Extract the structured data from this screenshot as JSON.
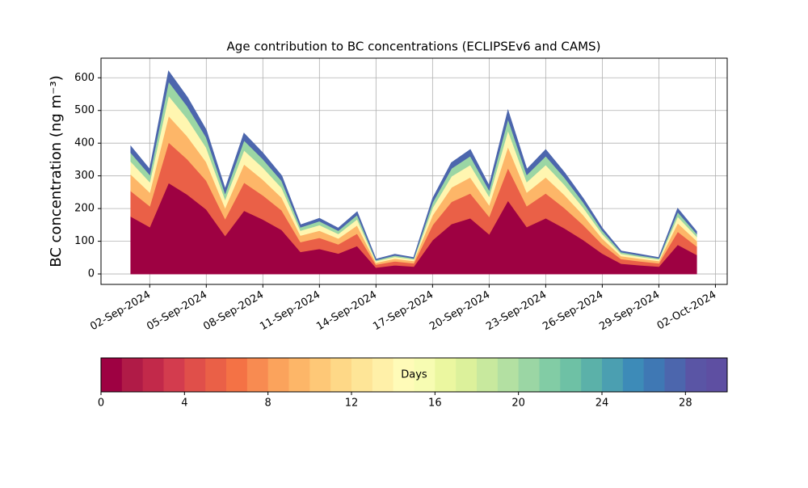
{
  "chart_data": {
    "type": "stacked_area",
    "title": "Age contribution to BC concentrations (ECLIPSEv6 and CAMS)",
    "y_label": "BC concentration (ng m⁻³)",
    "x": [
      "2024-09-01",
      "2024-09-02",
      "2024-09-03",
      "2024-09-04",
      "2024-09-05",
      "2024-09-06",
      "2024-09-07",
      "2024-09-08",
      "2024-09-09",
      "2024-09-10",
      "2024-09-11",
      "2024-09-12",
      "2024-09-13",
      "2024-09-14",
      "2024-09-15",
      "2024-09-16",
      "2024-09-17",
      "2024-09-18",
      "2024-09-19",
      "2024-09-20",
      "2024-09-21",
      "2024-09-22",
      "2024-09-23",
      "2024-09-24",
      "2024-09-25",
      "2024-09-26",
      "2024-09-27",
      "2024-09-28",
      "2024-09-29",
      "2024-09-30",
      "2024-10-01"
    ],
    "series": [
      {
        "color": "#9e0142",
        "values": [
          176,
          144,
          279,
          243,
          198,
          117,
          194,
          167,
          135,
          68,
          77,
          63,
          86,
          20,
          27,
          23,
          104,
          153,
          171,
          122,
          225,
          144,
          171,
          140,
          104,
          63,
          32,
          27,
          23,
          90,
          59
        ]
      },
      {
        "color": "#ea6047",
        "values": [
          78,
          64,
          124,
          108,
          88,
          52,
          86,
          74,
          60,
          30,
          34,
          28,
          38,
          9,
          12,
          10,
          46,
          68,
          76,
          54,
          100,
          64,
          76,
          62,
          46,
          28,
          14,
          12,
          10,
          40,
          26
        ]
      },
      {
        "color": "#fdb668",
        "values": [
          51,
          42,
          81,
          70,
          57,
          34,
          56,
          48,
          39,
          20,
          22,
          18,
          25,
          6,
          8,
          7,
          30,
          44,
          49,
          35,
          65,
          42,
          49,
          40,
          30,
          18,
          9,
          8,
          7,
          26,
          17
        ]
      },
      {
        "color": "#fff6b0",
        "values": [
          39,
          32,
          62,
          54,
          44,
          26,
          43,
          37,
          30,
          15,
          17,
          14,
          19,
          5,
          6,
          5,
          23,
          34,
          38,
          27,
          50,
          32,
          38,
          31,
          23,
          14,
          7,
          6,
          5,
          20,
          13
        ]
      },
      {
        "color": "#9bd6a4",
        "values": [
          27,
          22,
          43,
          38,
          31,
          18,
          30,
          26,
          21,
          10,
          12,
          10,
          13,
          3,
          4,
          3,
          16,
          24,
          27,
          19,
          35,
          22,
          27,
          22,
          16,
          10,
          5,
          4,
          3,
          14,
          9
        ]
      },
      {
        "color": "#4c66ad",
        "values": [
          19,
          16,
          31,
          27,
          22,
          13,
          21,
          18,
          15,
          7,
          8,
          7,
          9,
          2,
          3,
          2,
          11,
          17,
          19,
          13,
          25,
          16,
          19,
          15,
          11,
          7,
          3,
          3,
          2,
          10,
          6
        ]
      }
    ],
    "xlim": [
      "2024-08-30T10:00",
      "2024-10-02T15:00"
    ],
    "xticks": [
      {
        "value": "2024-09-02",
        "label": "02-Sep-2024"
      },
      {
        "value": "2024-09-05",
        "label": "05-Sep-2024"
      },
      {
        "value": "2024-09-08",
        "label": "08-Sep-2024"
      },
      {
        "value": "2024-09-11",
        "label": "11-Sep-2024"
      },
      {
        "value": "2024-09-14",
        "label": "14-Sep-2024"
      },
      {
        "value": "2024-09-17",
        "label": "17-Sep-2024"
      },
      {
        "value": "2024-09-20",
        "label": "20-Sep-2024"
      },
      {
        "value": "2024-09-23",
        "label": "23-Sep-2024"
      },
      {
        "value": "2024-09-26",
        "label": "26-Sep-2024"
      },
      {
        "value": "2024-09-29",
        "label": "29-Sep-2024"
      },
      {
        "value": "2024-10-02",
        "label": "02-Oct-2024"
      }
    ],
    "ylim": [
      -32,
      660
    ],
    "yticks": [
      0,
      100,
      200,
      300,
      400,
      500,
      600
    ],
    "grid": true,
    "colorbar": {
      "label": "Days",
      "lim": [
        0,
        30
      ],
      "ticks": [
        0,
        4,
        8,
        12,
        16,
        20,
        24,
        28
      ],
      "colors": [
        "#9e0142",
        "#b01b47",
        "#c2294a",
        "#d33c4e",
        "#e04f4a",
        "#ea6047",
        "#f47245",
        "#f88b51",
        "#fba35c",
        "#fdb668",
        "#fec877",
        "#fed887",
        "#fee597",
        "#fff0a8",
        "#fffbb8",
        "#f7fcb2",
        "#ebf7a0",
        "#dcf19b",
        "#c8e99e",
        "#b3e0a2",
        "#9bd6a4",
        "#82cca5",
        "#6ec1a5",
        "#5bb1a9",
        "#4b9fb1",
        "#3d8bb8",
        "#3f78b4",
        "#4c66ad",
        "#5a55a5",
        "#5e4fa2"
      ]
    }
  }
}
